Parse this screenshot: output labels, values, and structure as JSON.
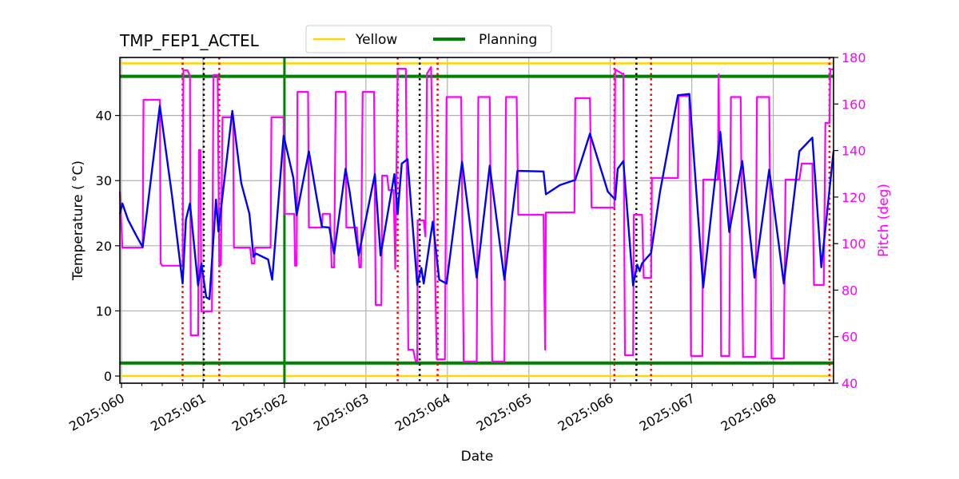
{
  "chart_data": {
    "type": "line",
    "title": "TMP_FEP1_ACTEL",
    "xlabel": "Date",
    "ylabel": "Temperature ($^\\circ$C)",
    "ylabel_display": "Temperature ( °C)",
    "y2label": "Pitch (deg)",
    "xlim": [
      59.98,
      68.74
    ],
    "ylim": [
      -1.1,
      48.9
    ],
    "y2lim": [
      40,
      180
    ],
    "grid": true,
    "legend_placement": "top-center (above plot)",
    "x_ticks": [
      60,
      61,
      62,
      63,
      64,
      65,
      66,
      67,
      68
    ],
    "x_tick_labels": [
      "2025:060",
      "2025:061",
      "2025:062",
      "2025:063",
      "2025:064",
      "2025:065",
      "2025:066",
      "2025:067",
      "2025:068"
    ],
    "y_ticks": [
      0,
      10,
      20,
      30,
      40
    ],
    "y_tick_labels": [
      "0",
      "10",
      "20",
      "30",
      "40"
    ],
    "y2_ticks": [
      40,
      60,
      80,
      100,
      120,
      140,
      160,
      180
    ],
    "y2_tick_labels": [
      "40",
      "60",
      "80",
      "100",
      "120",
      "140",
      "160",
      "180"
    ],
    "limits": [
      {
        "name": "Yellow",
        "values": [
          48,
          0
        ],
        "color": "#FFD700"
      },
      {
        "name": "Planning",
        "values": [
          46,
          2
        ],
        "color": "#008000"
      }
    ],
    "vertical_lines": {
      "green_solid": [
        62.0
      ],
      "red_dotted": [
        60.75,
        61.2,
        63.39,
        63.88,
        66.05,
        66.5,
        68.69
      ],
      "black_dotted": [
        61.01,
        63.66,
        66.32
      ]
    },
    "colors": {
      "temperature": "#0000FF",
      "pitch": "#FF00FF",
      "red_dotted": "#FF0000",
      "black_dotted": "#000000",
      "grid": "#B0B0B0"
    },
    "temperature": {
      "x": [
        59.98,
        60.01,
        60.08,
        60.18,
        60.26,
        60.47,
        60.62,
        60.75,
        60.79,
        60.84,
        60.94,
        60.98,
        61.04,
        61.08,
        61.16,
        61.19,
        61.36,
        61.47,
        61.57,
        61.62,
        61.65,
        61.8,
        61.85,
        61.99,
        62.11,
        62.15,
        62.3,
        62.4,
        62.46,
        62.55,
        62.61,
        62.75,
        62.8,
        62.91,
        63.11,
        63.18,
        63.35,
        63.39,
        63.44,
        63.51,
        63.63,
        63.68,
        63.71,
        63.82,
        63.9,
        63.99,
        64.18,
        64.36,
        64.52,
        64.7,
        64.86,
        65.18,
        65.21,
        65.38,
        65.57,
        65.75,
        65.97,
        66.06,
        66.09,
        66.16,
        66.28,
        66.33,
        66.36,
        66.39,
        66.5,
        66.61,
        66.83,
        66.97,
        67.14,
        67.35,
        67.46,
        67.62,
        67.77,
        67.95,
        68.13,
        68.32,
        68.48,
        68.59,
        68.74
      ],
      "y": [
        24.9,
        26.5,
        24.0,
        21.6,
        19.8,
        41.5,
        27.7,
        14.2,
        24.0,
        26.5,
        13.9,
        17.3,
        12.1,
        11.8,
        27.1,
        22.2,
        40.7,
        29.6,
        24.9,
        18.3,
        18.8,
        17.9,
        14.8,
        36.9,
        30.4,
        24.7,
        34.5,
        27.1,
        22.9,
        22.8,
        18.8,
        31.8,
        28.3,
        18.5,
        31.0,
        18.5,
        31.0,
        24.9,
        32.6,
        33.3,
        14.0,
        16.6,
        14.2,
        23.7,
        14.8,
        14.2,
        32.9,
        15.1,
        32.3,
        14.8,
        31.5,
        31.4,
        27.9,
        29.3,
        30.1,
        37.2,
        28.3,
        27.1,
        31.8,
        33.0,
        13.9,
        17.1,
        16.1,
        17.3,
        18.9,
        28.3,
        43.1,
        43.3,
        13.6,
        37.5,
        22.1,
        33.0,
        15.1,
        31.7,
        14.2,
        34.5,
        36.6,
        16.7,
        34.5
      ]
    },
    "pitch": {
      "x": [
        59.98,
        60.01,
        60.26,
        60.27,
        60.47,
        60.48,
        60.5,
        60.75,
        60.76,
        60.81,
        60.84,
        60.85,
        60.94,
        60.95,
        60.97,
        60.98,
        61.11,
        61.13,
        61.18,
        61.2,
        61.22,
        61.24,
        61.37,
        61.38,
        61.58,
        61.6,
        61.63,
        61.64,
        61.83,
        61.84,
        61.99,
        62.0,
        62.12,
        62.13,
        62.15,
        62.16,
        62.29,
        62.3,
        62.46,
        62.47,
        62.56,
        62.58,
        62.61,
        62.63,
        62.75,
        62.76,
        62.89,
        62.92,
        62.94,
        62.96,
        63.1,
        63.12,
        63.19,
        63.2,
        63.26,
        63.28,
        63.34,
        63.36,
        63.39,
        63.49,
        63.52,
        63.58,
        63.61,
        63.63,
        63.635,
        63.71,
        63.73,
        63.75,
        63.8,
        63.87,
        63.97,
        63.99,
        64.17,
        64.2,
        64.36,
        64.38,
        64.52,
        64.55,
        64.7,
        64.72,
        64.85,
        64.87,
        65.18,
        65.2,
        65.21,
        65.56,
        65.57,
        65.75,
        65.77,
        66.05,
        66.06,
        66.14,
        66.16,
        66.18,
        66.28,
        66.29,
        66.39,
        66.41,
        66.5,
        66.51,
        66.83,
        66.84,
        66.97,
        66.99,
        67.13,
        67.14,
        67.32,
        67.33,
        67.34,
        67.35,
        67.36,
        67.46,
        67.48,
        67.6,
        67.63,
        67.78,
        67.8,
        67.95,
        67.98,
        68.13,
        68.15,
        68.32,
        68.35,
        68.48,
        68.5,
        68.62,
        68.64,
        68.69,
        68.7,
        68.74
      ],
      "y": [
        122.4,
        98.3,
        98.3,
        161.8,
        161.8,
        91.5,
        90.5,
        90.5,
        174.5,
        174.5,
        172.1,
        60.6,
        60.6,
        140.2,
        140.2,
        70.9,
        70.9,
        172.5,
        172.5,
        90.8,
        90.8,
        154.3,
        154.3,
        98.3,
        98.3,
        91.5,
        91.5,
        98.3,
        98.3,
        154.3,
        154.3,
        112.8,
        112.8,
        90.5,
        90.5,
        165.2,
        165.2,
        106.9,
        106.9,
        112.8,
        112.8,
        89.8,
        89.8,
        165.2,
        165.2,
        106.9,
        106.9,
        89.8,
        89.8,
        165.2,
        165.2,
        73.6,
        73.6,
        129.2,
        129.2,
        123.0,
        123.0,
        89.1,
        175.2,
        175.2,
        54.4,
        54.4,
        49.6,
        49.6,
        110.0,
        110.0,
        103.1,
        173.1,
        175.9,
        50.3,
        50.3,
        163.0,
        163.0,
        49.3,
        49.3,
        163.0,
        163.0,
        49.3,
        49.3,
        163.0,
        163.0,
        112.4,
        112.4,
        54.4,
        113.4,
        113.4,
        162.5,
        162.5,
        115.5,
        115.5,
        174.9,
        173.1,
        173.1,
        52.0,
        52.0,
        112.4,
        112.4,
        85.3,
        85.3,
        128.2,
        128.2,
        163.5,
        163.5,
        51.7,
        51.7,
        127.5,
        127.5,
        172.8,
        127.5,
        127.5,
        51.7,
        51.7,
        163.0,
        163.0,
        51.3,
        51.3,
        163.0,
        163.0,
        50.6,
        50.6,
        127.5,
        127.5,
        134.4,
        134.4,
        82.2,
        82.2,
        151.9,
        151.9,
        174.9,
        174.9
      ]
    }
  }
}
